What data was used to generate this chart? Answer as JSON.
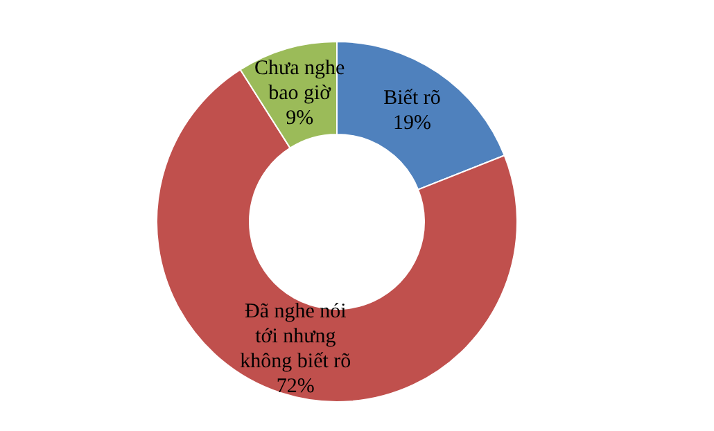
{
  "chart_data": {
    "type": "donut",
    "categories": [
      "Biết rõ",
      "Đã nghe nói tới nhưng không biết rõ",
      "Chưa nghe bao giờ"
    ],
    "values": [
      19,
      72,
      9
    ],
    "colors": [
      "#4f81bd",
      "#c0504d",
      "#9bbb59"
    ],
    "value_labels": [
      "19%",
      "72%",
      "9%"
    ]
  }
}
